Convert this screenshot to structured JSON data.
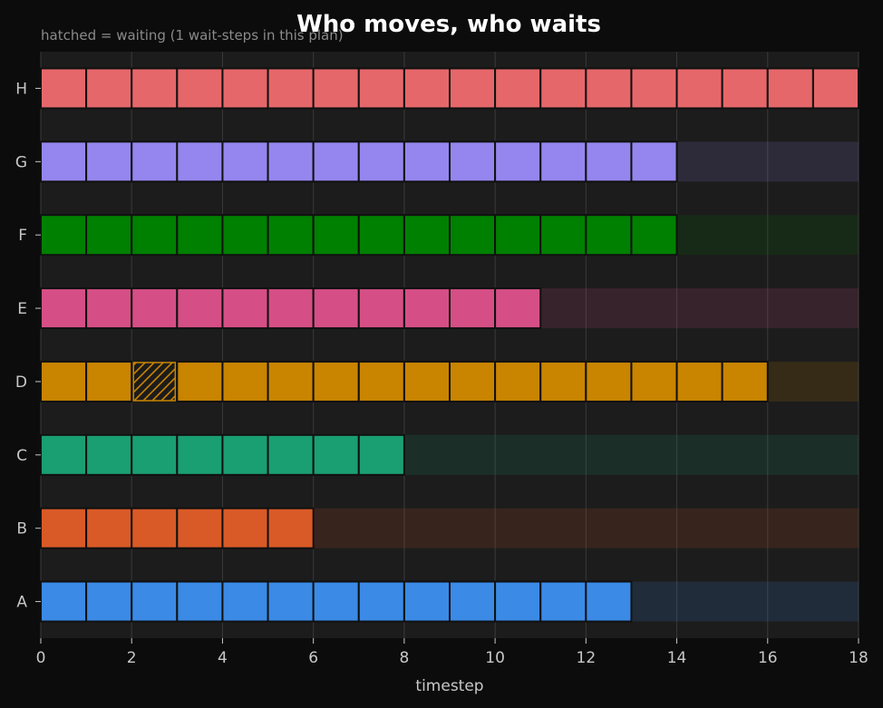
{
  "chart_data": {
    "type": "gantt",
    "title": "Who moves, who waits",
    "subtitle": "hatched = waiting  (1 wait-steps in this plan)",
    "xlabel": "timestep",
    "ylabel": "",
    "xlim": [
      0,
      18
    ],
    "xticks": [
      0,
      2,
      4,
      6,
      8,
      10,
      12,
      14,
      16,
      18
    ],
    "grid": true,
    "agents": [
      {
        "name": "A",
        "color": "#3a8ae6",
        "moves": 13,
        "waits": []
      },
      {
        "name": "B",
        "color": "#d95a27",
        "moves": 6,
        "waits": []
      },
      {
        "name": "C",
        "color": "#1a9f72",
        "moves": 8,
        "waits": []
      },
      {
        "name": "D",
        "color": "#c98400",
        "moves": 16,
        "waits": [
          2
        ]
      },
      {
        "name": "E",
        "color": "#d54f86",
        "moves": 11,
        "waits": []
      },
      {
        "name": "F",
        "color": "#008000",
        "moves": 14,
        "waits": []
      },
      {
        "name": "G",
        "color": "#9486ee",
        "moves": 14,
        "waits": []
      },
      {
        "name": "H",
        "color": "#e6676a",
        "moves": 18,
        "waits": []
      }
    ]
  }
}
